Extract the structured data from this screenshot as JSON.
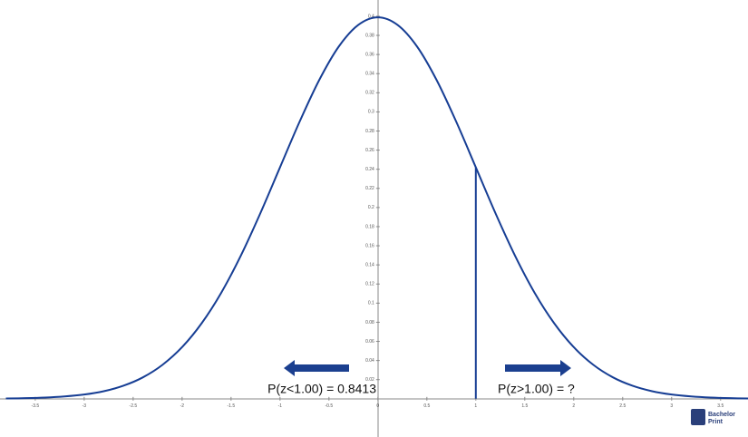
{
  "chart_data": {
    "type": "line",
    "x": [
      -3.8,
      -3.6,
      -3.4,
      -3.2,
      -3.0,
      -2.8,
      -2.6,
      -2.4,
      -2.2,
      -2.0,
      -1.8,
      -1.6,
      -1.4,
      -1.2,
      -1.0,
      -0.8,
      -0.6,
      -0.4,
      -0.2,
      0,
      0.2,
      0.4,
      0.6,
      0.8,
      1.0,
      1.2,
      1.4,
      1.6,
      1.8,
      2.0,
      2.2,
      2.4,
      2.6,
      2.8,
      3.0,
      3.2,
      3.4,
      3.6,
      3.8
    ],
    "series": [
      {
        "color": "#173e94",
        "values": [
          0.0003,
          0.0006,
          0.0012,
          0.0024,
          0.0044,
          0.0079,
          0.0136,
          0.0224,
          0.0355,
          0.054,
          0.079,
          0.1109,
          0.1497,
          0.1942,
          0.242,
          0.2897,
          0.3332,
          0.3683,
          0.391,
          0.3989,
          0.391,
          0.3683,
          0.3332,
          0.2897,
          0.242,
          0.1942,
          0.1497,
          0.1109,
          0.079,
          0.054,
          0.0355,
          0.0224,
          0.0136,
          0.0079,
          0.0044,
          0.0024,
          0.0012,
          0.0006,
          0.0003
        ]
      }
    ],
    "xlim": [
      -3.86,
      3.78
    ],
    "ylim": [
      -0.04,
      0.417
    ],
    "xticks": [
      -3.5,
      -3,
      -2.5,
      -2,
      -1.5,
      -1,
      -0.5,
      0,
      0.5,
      1,
      1.5,
      2,
      2.5,
      3,
      3.5
    ],
    "yticks": [
      0.02,
      0.04,
      0.06,
      0.08,
      0.1,
      0.12,
      0.14,
      0.16,
      0.18,
      0.2,
      0.22,
      0.24,
      0.26,
      0.28,
      0.3,
      0.32,
      0.34,
      0.36,
      0.38,
      0.4
    ],
    "cutoff_x": 1,
    "cutoff_index": 24,
    "annotations": [
      "P(z<1.00) = 0.8413",
      "P(z>1.00) = ?"
    ]
  },
  "logo": {
    "line1": "Bachelor",
    "line2": "Print"
  }
}
